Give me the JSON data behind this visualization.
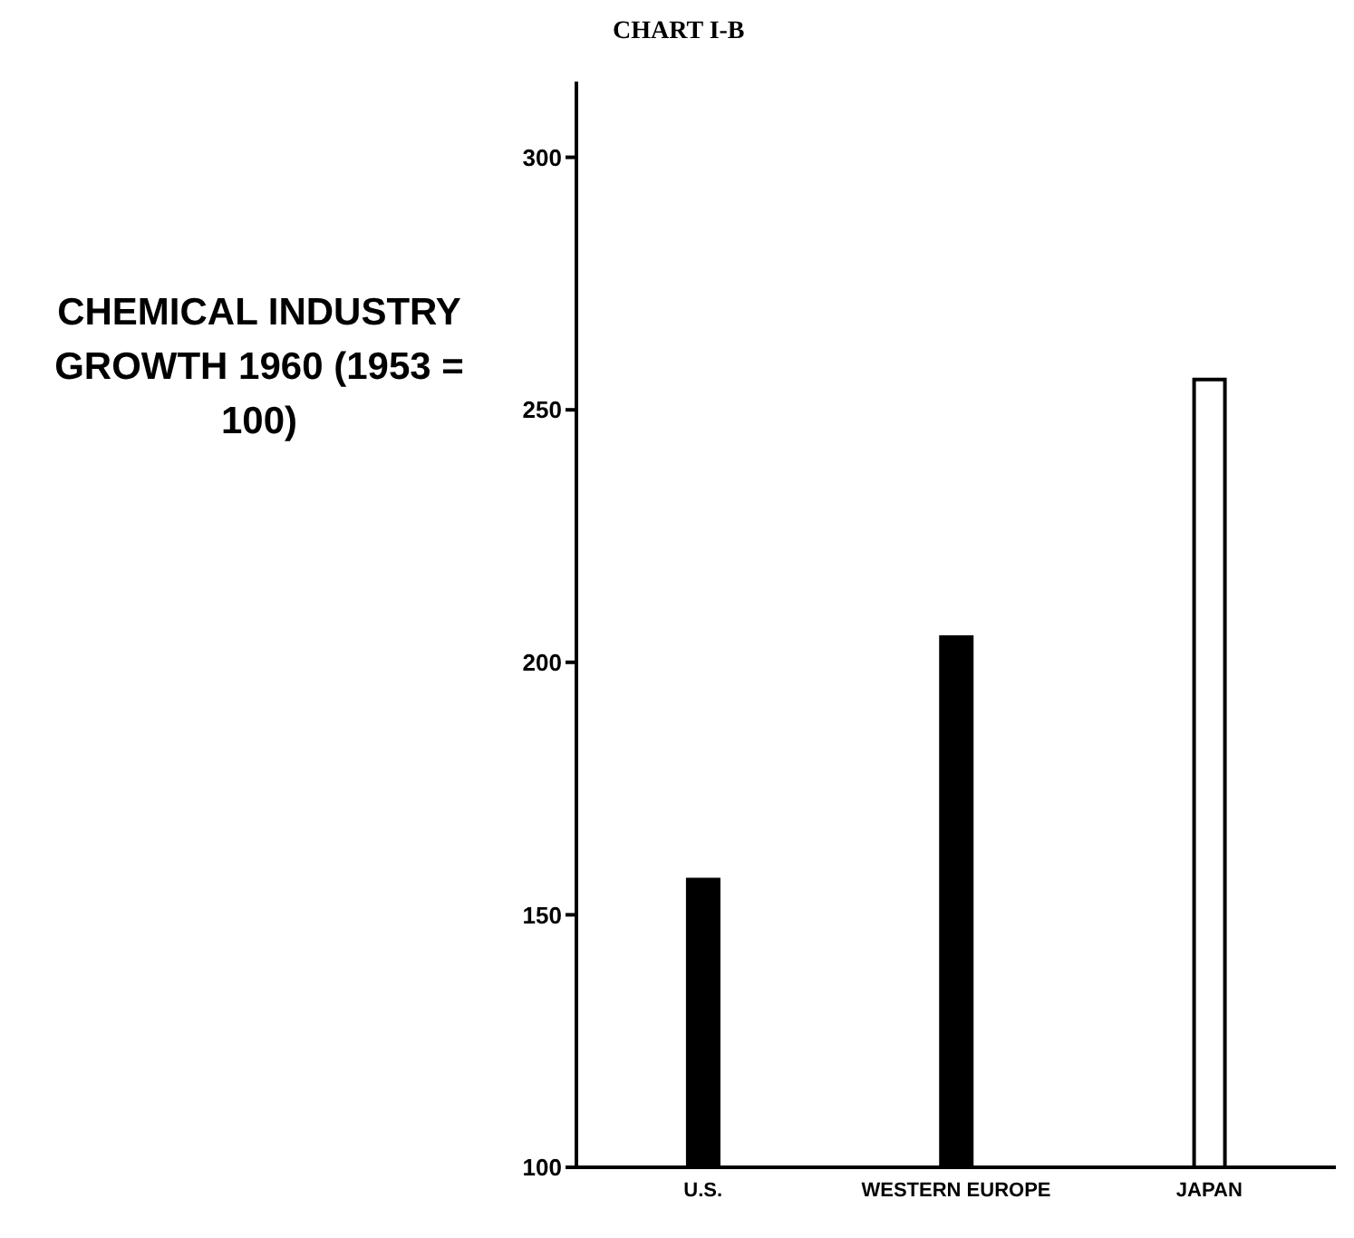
{
  "chart_data": {
    "type": "bar",
    "title": "CHART I-B",
    "subtitle": "CHEMICAL INDUSTRY GROWTH 1960 (1953 = 100)",
    "categories": [
      "U.S.",
      "WESTERN EUROPE",
      "JAPAN"
    ],
    "values": [
      157,
      205,
      256
    ],
    "colors": [
      "#000000",
      "#000000",
      "#ffffff"
    ],
    "ylim": [
      100,
      315
    ],
    "yticks": [
      100,
      150,
      200,
      250,
      300
    ],
    "grid": false,
    "legend": false
  }
}
